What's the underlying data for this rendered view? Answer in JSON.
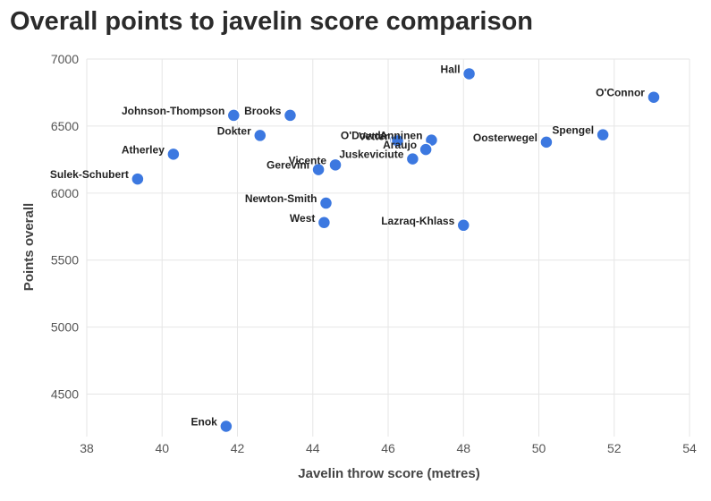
{
  "chart_data": {
    "type": "scatter",
    "title": "Overall points to javelin score comparison",
    "xlabel": "Javelin throw score (metres)",
    "ylabel": "Points overall",
    "xlim": [
      38,
      54
    ],
    "ylim": [
      4250,
      7000
    ],
    "xticks": [
      38,
      40,
      42,
      44,
      46,
      48,
      50,
      52,
      54
    ],
    "yticks": [
      4500,
      5000,
      5500,
      6000,
      6500,
      7000
    ],
    "grid": true,
    "color": "#3c78e0",
    "points": [
      {
        "name": "Hall",
        "x": 48.15,
        "y": 6890,
        "label_side": "left"
      },
      {
        "name": "O'Connor",
        "x": 53.05,
        "y": 6715,
        "label_side": "left"
      },
      {
        "name": "Johnson-Thompson",
        "x": 41.9,
        "y": 6580,
        "label_side": "left"
      },
      {
        "name": "Brooks",
        "x": 43.4,
        "y": 6580,
        "label_side": "left"
      },
      {
        "name": "Dokter",
        "x": 42.6,
        "y": 6430,
        "label_side": "left"
      },
      {
        "name": "Spengel",
        "x": 51.7,
        "y": 6435,
        "label_side": "left"
      },
      {
        "name": "O'Dowda",
        "x": 46.2,
        "y": 6395,
        "label_side": "left"
      },
      {
        "name": "Vetter",
        "x": 46.25,
        "y": 6390,
        "label_side": "left"
      },
      {
        "name": "Anninen",
        "x": 47.15,
        "y": 6395,
        "label_side": "left"
      },
      {
        "name": "Oosterwegel",
        "x": 50.2,
        "y": 6380,
        "label_side": "left"
      },
      {
        "name": "Araujo",
        "x": 47.0,
        "y": 6325,
        "label_side": "left"
      },
      {
        "name": "Atherley",
        "x": 40.3,
        "y": 6290,
        "label_side": "left"
      },
      {
        "name": "Juskeviciute",
        "x": 46.65,
        "y": 6255,
        "label_side": "left"
      },
      {
        "name": "Vicente",
        "x": 44.6,
        "y": 6210,
        "label_side": "left"
      },
      {
        "name": "Gerevini",
        "x": 44.15,
        "y": 6175,
        "label_side": "left"
      },
      {
        "name": "Sulek-Schubert",
        "x": 39.35,
        "y": 6105,
        "label_side": "left"
      },
      {
        "name": "Newton-Smith",
        "x": 44.35,
        "y": 5925,
        "label_side": "left"
      },
      {
        "name": "West",
        "x": 44.3,
        "y": 5780,
        "label_side": "left"
      },
      {
        "name": "Lazraq-Khlass",
        "x": 48.0,
        "y": 5760,
        "label_side": "left"
      },
      {
        "name": "Enok",
        "x": 41.7,
        "y": 4260,
        "label_side": "left"
      }
    ]
  }
}
